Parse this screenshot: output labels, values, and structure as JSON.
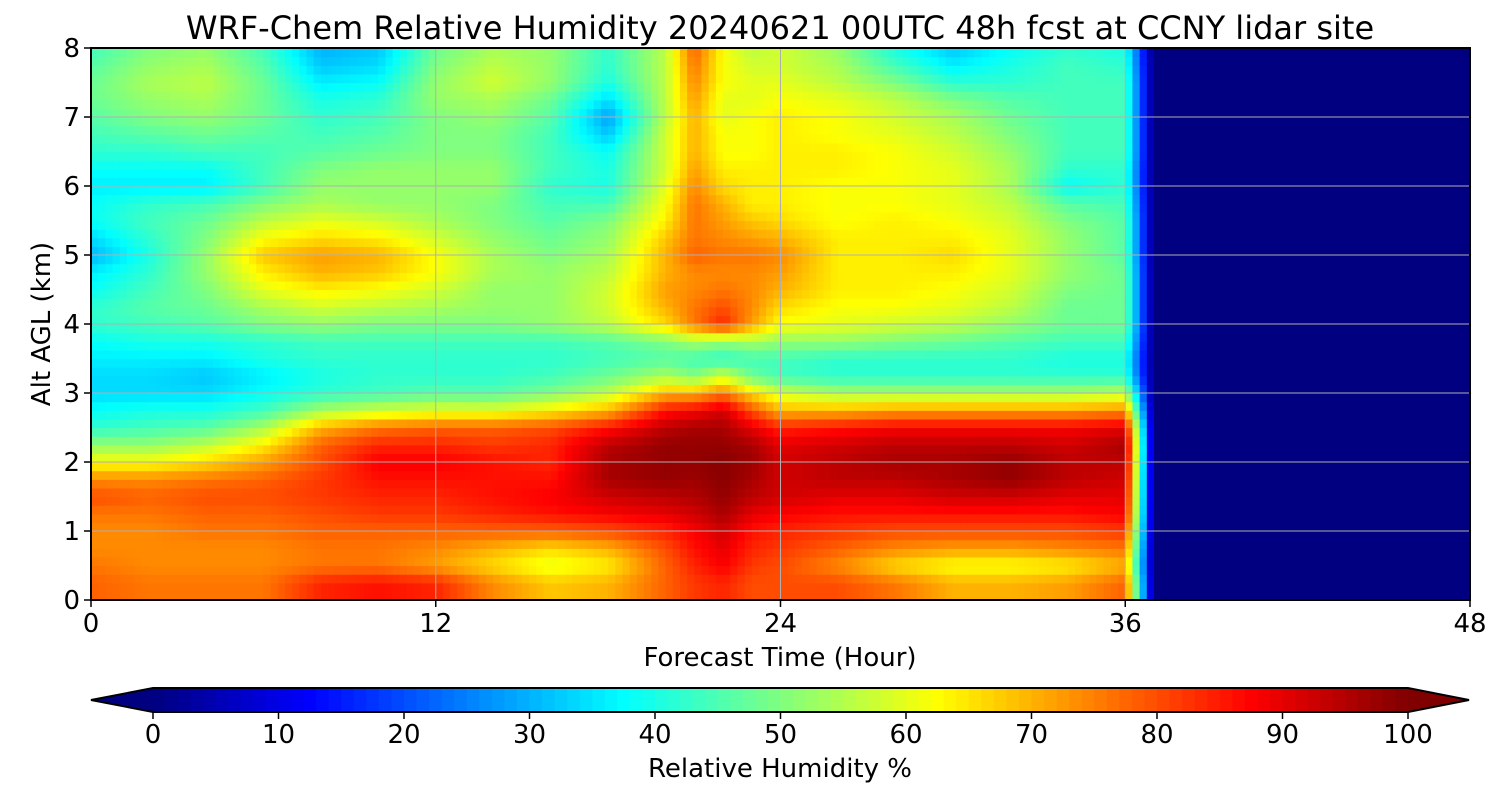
{
  "chart_data": {
    "type": "heatmap",
    "title": "WRF-Chem Relative Humidity 20240621 00UTC 48h fcst at CCNY lidar site",
    "xlabel": "Forecast Time (Hour)",
    "ylabel": "Alt AGL (km)",
    "xlim": [
      0,
      48
    ],
    "ylim": [
      0,
      8
    ],
    "xticks": [
      0,
      12,
      24,
      36,
      48
    ],
    "yticks": [
      0,
      1,
      2,
      3,
      4,
      5,
      6,
      7,
      8
    ],
    "grid": true,
    "colormap": "jet",
    "colorbar": {
      "label": "Relative Humidity %",
      "ticks": [
        0,
        10,
        20,
        30,
        40,
        50,
        60,
        70,
        80,
        90,
        100
      ],
      "range": [
        0,
        100
      ],
      "extend": "both",
      "orientation": "horizontal"
    },
    "x": [
      0,
      2,
      4,
      6,
      8,
      10,
      12,
      14,
      16,
      18,
      20,
      21,
      22,
      23,
      24,
      26,
      28,
      30,
      32,
      34,
      36,
      37,
      38,
      40,
      42,
      44,
      46,
      48
    ],
    "y": [
      0,
      0.25,
      0.5,
      0.75,
      1,
      1.25,
      1.5,
      1.75,
      2,
      2.25,
      2.5,
      2.75,
      3,
      3.25,
      3.5,
      3.75,
      4,
      4.25,
      4.5,
      4.75,
      5,
      5.25,
      5.5,
      5.75,
      6,
      6.25,
      6.5,
      6.75,
      7,
      7.25,
      7.5,
      7.75,
      8
    ],
    "values_note": "values[i][j] = relative humidity % at altitude y[i] and forecast hour x[j]",
    "values": [
      [
        78,
        76,
        76,
        76,
        84,
        86,
        84,
        74,
        68,
        70,
        78,
        82,
        84,
        80,
        80,
        80,
        76,
        70,
        70,
        72,
        78,
        0,
        0,
        0,
        0,
        0,
        0,
        0
      ],
      [
        78,
        76,
        76,
        76,
        84,
        86,
        84,
        74,
        68,
        70,
        78,
        82,
        84,
        80,
        80,
        80,
        76,
        70,
        70,
        72,
        78,
        0,
        0,
        0,
        0,
        0,
        0,
        0
      ],
      [
        76,
        74,
        74,
        74,
        76,
        76,
        72,
        66,
        60,
        64,
        78,
        84,
        88,
        82,
        80,
        74,
        66,
        62,
        62,
        64,
        70,
        0,
        0,
        0,
        0,
        0,
        0,
        0
      ],
      [
        74,
        74,
        74,
        74,
        76,
        76,
        74,
        70,
        66,
        70,
        80,
        86,
        90,
        84,
        82,
        78,
        74,
        72,
        72,
        74,
        76,
        0,
        0,
        0,
        0,
        0,
        0,
        0
      ],
      [
        74,
        74,
        76,
        76,
        78,
        78,
        78,
        78,
        78,
        80,
        84,
        88,
        92,
        86,
        84,
        82,
        80,
        80,
        80,
        80,
        82,
        0,
        0,
        0,
        0,
        0,
        0,
        0
      ],
      [
        76,
        76,
        78,
        78,
        80,
        82,
        82,
        84,
        86,
        88,
        90,
        92,
        96,
        90,
        88,
        86,
        86,
        86,
        86,
        86,
        88,
        0,
        0,
        0,
        0,
        0,
        0,
        0
      ],
      [
        80,
        78,
        80,
        80,
        82,
        84,
        84,
        86,
        88,
        92,
        94,
        95,
        98,
        94,
        92,
        90,
        90,
        92,
        92,
        90,
        90,
        0,
        0,
        0,
        0,
        0,
        0,
        0
      ],
      [
        74,
        74,
        76,
        78,
        82,
        86,
        86,
        86,
        86,
        96,
        98,
        97,
        99,
        96,
        92,
        94,
        94,
        96,
        98,
        94,
        92,
        0,
        0,
        0,
        0,
        0,
        0,
        0
      ],
      [
        62,
        62,
        66,
        72,
        80,
        88,
        88,
        86,
        84,
        96,
        98,
        98,
        99,
        97,
        92,
        94,
        96,
        96,
        98,
        94,
        94,
        0,
        0,
        0,
        0,
        0,
        0,
        0
      ],
      [
        52,
        52,
        56,
        64,
        78,
        84,
        84,
        82,
        84,
        94,
        98,
        98,
        98,
        96,
        90,
        92,
        94,
        94,
        94,
        92,
        96,
        0,
        0,
        0,
        0,
        0,
        0,
        0
      ],
      [
        42,
        44,
        46,
        54,
        70,
        76,
        78,
        78,
        80,
        86,
        94,
        96,
        96,
        90,
        84,
        86,
        88,
        88,
        88,
        88,
        90,
        0,
        0,
        0,
        0,
        0,
        0,
        0
      ],
      [
        38,
        40,
        40,
        44,
        54,
        58,
        60,
        60,
        64,
        70,
        86,
        88,
        92,
        80,
        70,
        70,
        72,
        72,
        72,
        72,
        74,
        0,
        0,
        0,
        0,
        0,
        0,
        0
      ],
      [
        34,
        34,
        34,
        38,
        42,
        44,
        46,
        46,
        50,
        56,
        70,
        70,
        76,
        66,
        58,
        54,
        54,
        54,
        54,
        54,
        56,
        0,
        0,
        0,
        0,
        0,
        0,
        0
      ],
      [
        34,
        34,
        32,
        36,
        40,
        42,
        42,
        42,
        44,
        48,
        54,
        50,
        58,
        48,
        44,
        42,
        42,
        42,
        42,
        42,
        42,
        0,
        0,
        0,
        0,
        0,
        0,
        0
      ],
      [
        36,
        36,
        36,
        40,
        42,
        42,
        42,
        42,
        42,
        44,
        46,
        44,
        42,
        44,
        44,
        42,
        42,
        42,
        42,
        40,
        40,
        0,
        0,
        0,
        0,
        0,
        0,
        0
      ],
      [
        38,
        40,
        40,
        42,
        44,
        44,
        44,
        44,
        44,
        46,
        50,
        54,
        52,
        54,
        52,
        52,
        50,
        48,
        46,
        44,
        44,
        0,
        0,
        0,
        0,
        0,
        0,
        0
      ],
      [
        42,
        44,
        46,
        50,
        52,
        50,
        50,
        50,
        52,
        56,
        66,
        76,
        84,
        72,
        62,
        60,
        58,
        56,
        52,
        48,
        48,
        0,
        0,
        0,
        0,
        0,
        0,
        0
      ],
      [
        42,
        46,
        48,
        54,
        58,
        56,
        54,
        52,
        52,
        58,
        70,
        76,
        80,
        74,
        66,
        62,
        62,
        60,
        56,
        48,
        48,
        0,
        0,
        0,
        0,
        0,
        0,
        0
      ],
      [
        38,
        44,
        50,
        60,
        64,
        62,
        58,
        52,
        52,
        58,
        72,
        74,
        76,
        74,
        70,
        64,
        64,
        62,
        58,
        50,
        48,
        0,
        0,
        0,
        0,
        0,
        0,
        0
      ],
      [
        36,
        42,
        52,
        64,
        70,
        68,
        62,
        54,
        52,
        56,
        70,
        74,
        74,
        74,
        72,
        64,
        64,
        64,
        60,
        52,
        48,
        0,
        0,
        0,
        0,
        0,
        0,
        0
      ],
      [
        30,
        40,
        52,
        68,
        72,
        70,
        62,
        54,
        50,
        54,
        70,
        78,
        76,
        76,
        74,
        64,
        64,
        66,
        60,
        52,
        46,
        0,
        0,
        0,
        0,
        0,
        0,
        0
      ],
      [
        34,
        42,
        50,
        62,
        66,
        64,
        58,
        52,
        48,
        52,
        68,
        76,
        74,
        72,
        70,
        64,
        64,
        64,
        60,
        52,
        46,
        0,
        0,
        0,
        0,
        0,
        0,
        0
      ],
      [
        38,
        44,
        48,
        56,
        60,
        58,
        54,
        50,
        46,
        50,
        64,
        76,
        72,
        68,
        66,
        62,
        64,
        62,
        58,
        50,
        46,
        0,
        0,
        0,
        0,
        0,
        0,
        0
      ],
      [
        38,
        42,
        44,
        50,
        54,
        52,
        52,
        50,
        44,
        44,
        62,
        76,
        70,
        64,
        64,
        62,
        62,
        60,
        56,
        46,
        44,
        0,
        0,
        0,
        0,
        0,
        0,
        0
      ],
      [
        36,
        36,
        36,
        44,
        52,
        52,
        52,
        52,
        42,
        40,
        60,
        74,
        66,
        64,
        64,
        62,
        62,
        60,
        54,
        38,
        42,
        0,
        0,
        0,
        0,
        0,
        0,
        0
      ],
      [
        38,
        38,
        38,
        44,
        50,
        52,
        52,
        52,
        44,
        40,
        58,
        72,
        64,
        64,
        64,
        64,
        62,
        60,
        54,
        42,
        42,
        0,
        0,
        0,
        0,
        0,
        0,
        0
      ],
      [
        42,
        42,
        44,
        44,
        46,
        48,
        50,
        50,
        44,
        38,
        58,
        70,
        62,
        62,
        64,
        64,
        62,
        58,
        52,
        44,
        44,
        0,
        0,
        0,
        0,
        0,
        0,
        0
      ],
      [
        44,
        46,
        48,
        46,
        44,
        46,
        50,
        50,
        44,
        32,
        58,
        70,
        62,
        62,
        64,
        62,
        60,
        56,
        50,
        44,
        44,
        0,
        0,
        0,
        0,
        0,
        0,
        0
      ],
      [
        46,
        50,
        52,
        48,
        42,
        44,
        50,
        52,
        46,
        28,
        56,
        70,
        60,
        62,
        64,
        62,
        58,
        54,
        48,
        44,
        44,
        0,
        0,
        0,
        0,
        0,
        0,
        0
      ],
      [
        48,
        52,
        54,
        48,
        40,
        42,
        52,
        54,
        48,
        34,
        56,
        72,
        60,
        60,
        62,
        60,
        56,
        50,
        46,
        44,
        44,
        0,
        0,
        0,
        0,
        0,
        0,
        0
      ],
      [
        48,
        54,
        56,
        48,
        36,
        38,
        52,
        58,
        52,
        40,
        56,
        74,
        62,
        60,
        60,
        56,
        50,
        42,
        42,
        44,
        44,
        0,
        0,
        0,
        0,
        0,
        0,
        0
      ],
      [
        46,
        52,
        54,
        46,
        32,
        34,
        50,
        56,
        52,
        42,
        56,
        76,
        62,
        58,
        58,
        54,
        44,
        36,
        40,
        44,
        42,
        0,
        0,
        0,
        0,
        0,
        0,
        0
      ],
      [
        44,
        50,
        52,
        44,
        30,
        32,
        48,
        54,
        52,
        42,
        56,
        78,
        62,
        56,
        58,
        52,
        40,
        32,
        38,
        42,
        40,
        0,
        0,
        0,
        0,
        0,
        0,
        0
      ]
    ]
  }
}
